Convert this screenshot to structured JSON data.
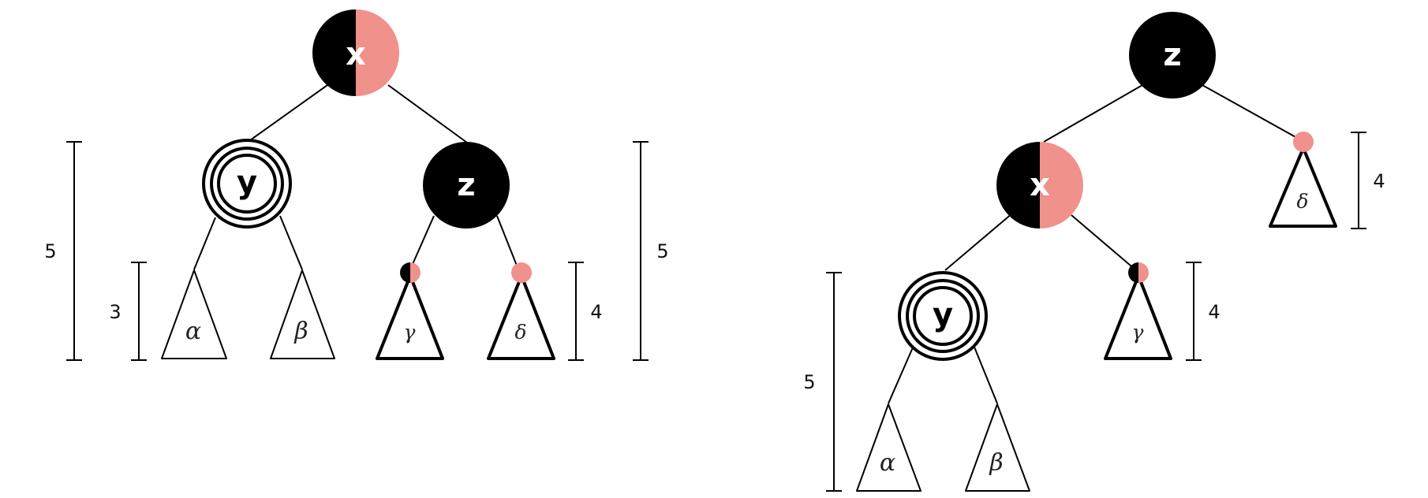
{
  "colors": {
    "black": "#000000",
    "red": "#F0918C",
    "white": "#FFFFFF"
  },
  "left": {
    "root_label": "x",
    "left_child_label": "y",
    "right_child_label": "z",
    "subtrees": [
      "α",
      "β",
      "γ",
      "δ"
    ],
    "heights": {
      "outer_left": "5",
      "inner_left": "3",
      "inner_right": "4",
      "outer_right": "5"
    }
  },
  "right": {
    "root_label": "z",
    "mid_label": "x",
    "deep_label": "y",
    "subtrees": [
      "α",
      "β",
      "γ",
      "δ"
    ],
    "heights": {
      "delta": "4",
      "gamma": "4",
      "y_subtree": "5"
    }
  }
}
